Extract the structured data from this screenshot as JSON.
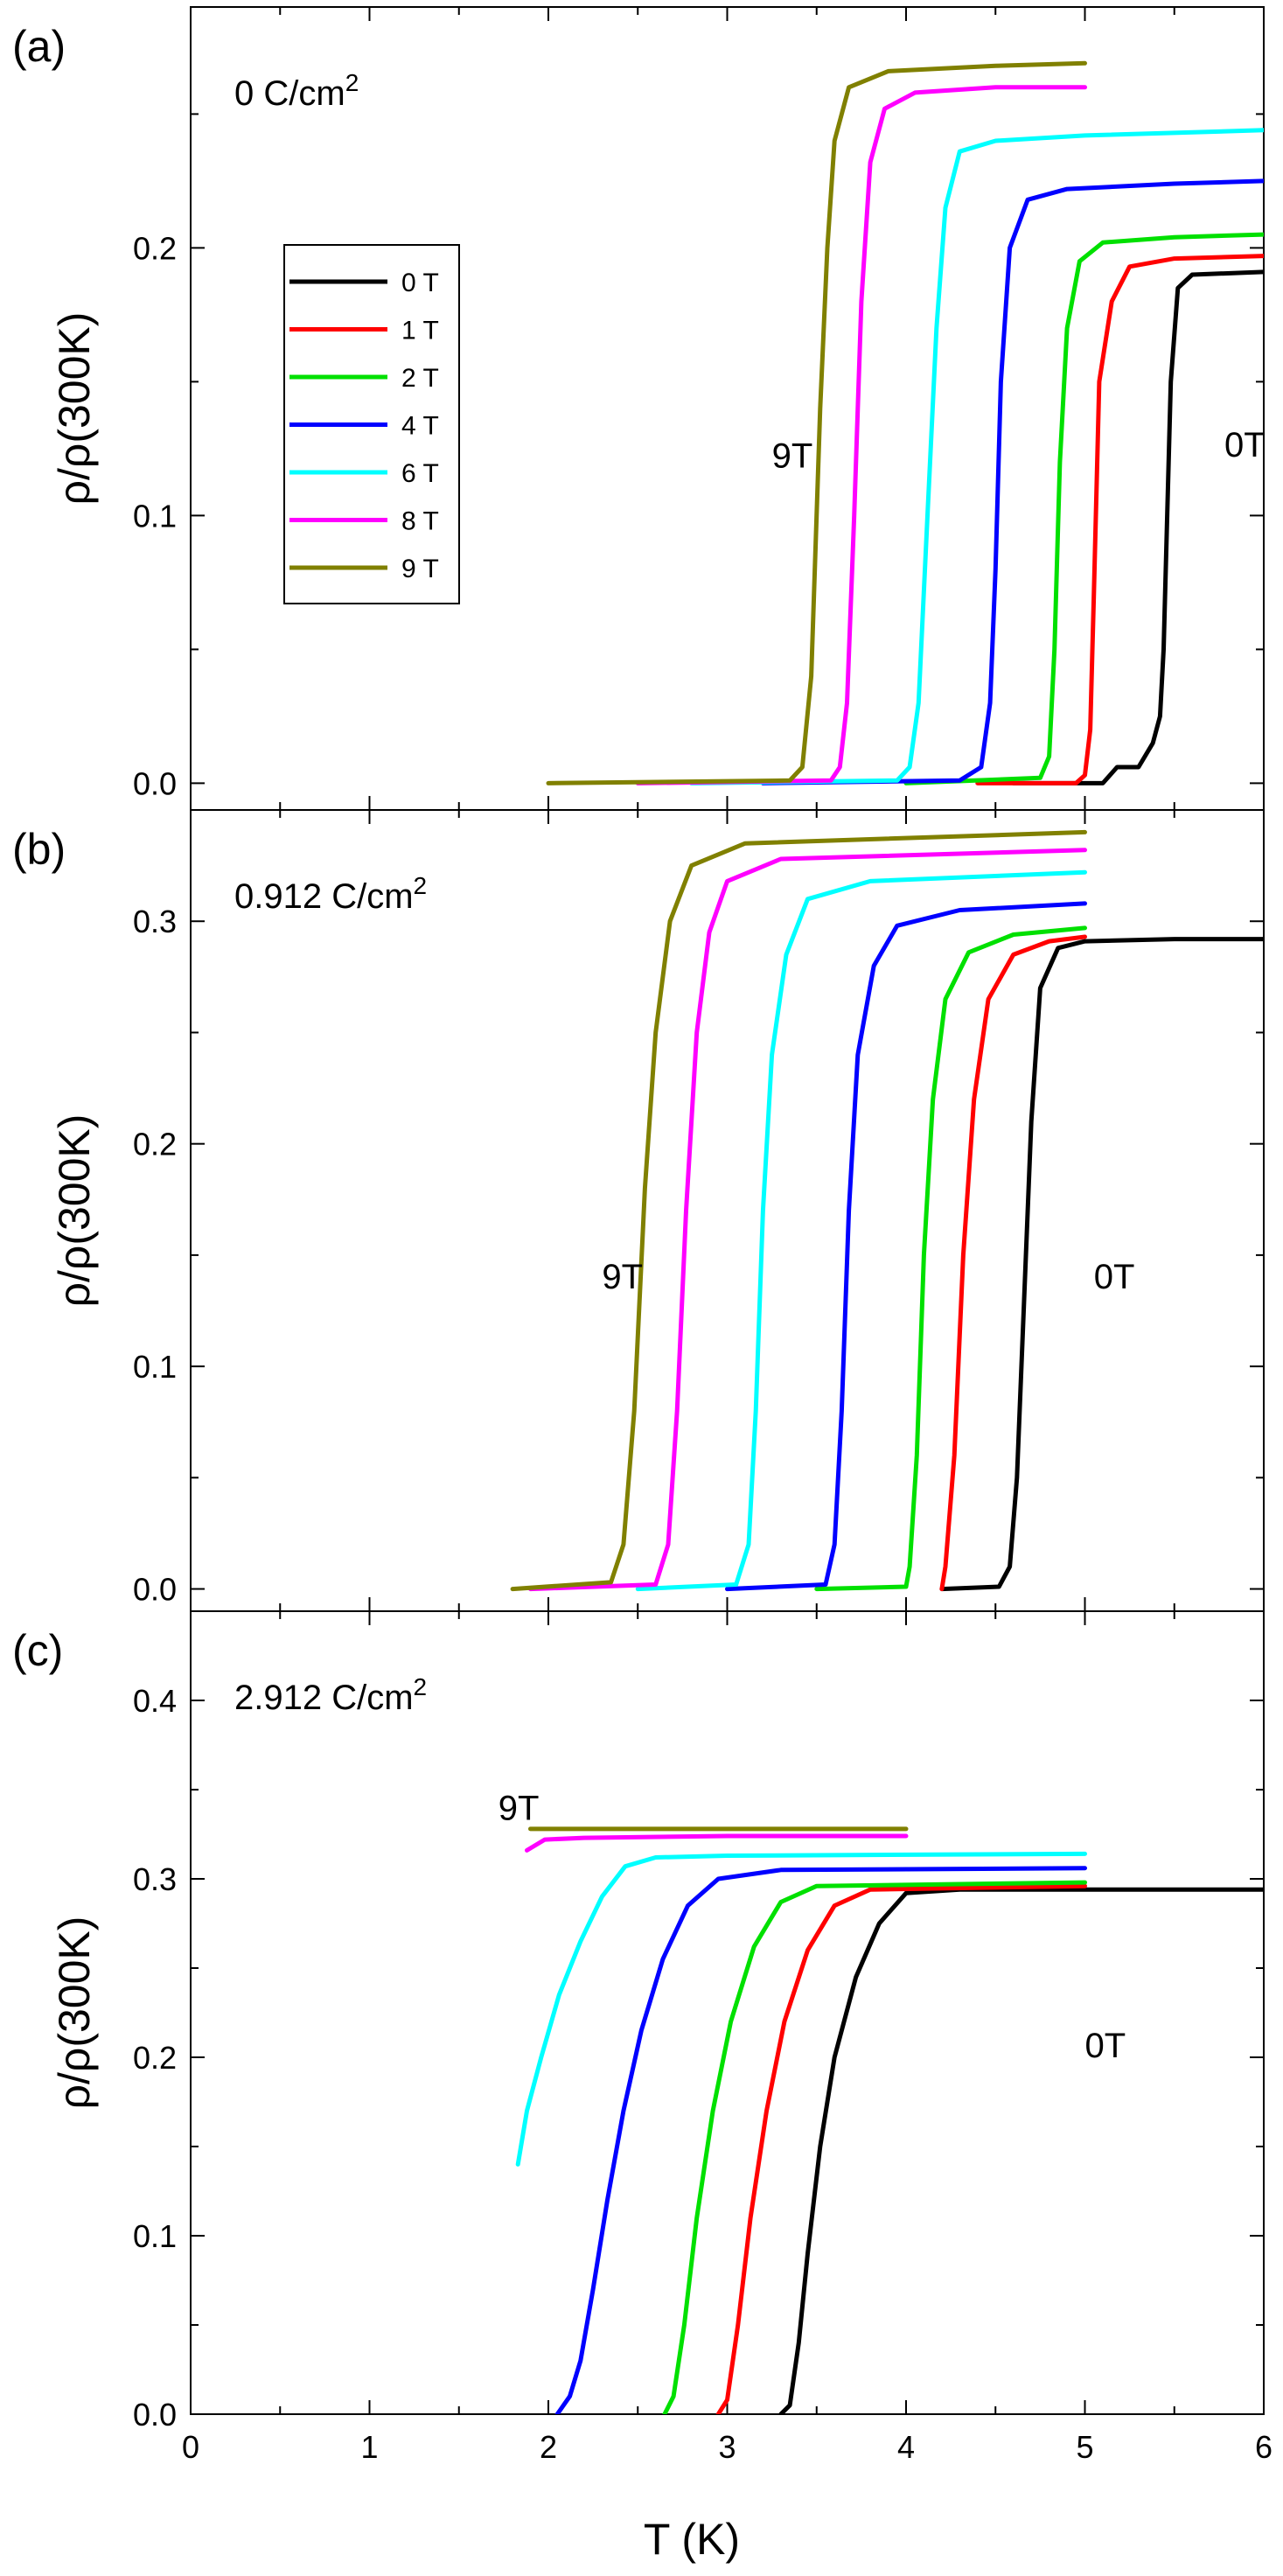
{
  "figure": {
    "xlabel": "T (K)",
    "ylabel": "ρ/ρ(300K)",
    "legend": {
      "placement": "upper-left of panel (a)",
      "entries": [
        "0 T",
        "1 T",
        "2 T",
        "4 T",
        "6 T",
        "8 T",
        "9 T"
      ]
    }
  },
  "colors": {
    "0T": "#000000",
    "1T": "#ff0000",
    "2T": "#00e000",
    "4T": "#0000ff",
    "6T": "#00ffff",
    "8T": "#ff00ff",
    "9T": "#808000"
  },
  "chart_data": [
    {
      "type": "line",
      "panel_label": "(a)",
      "title": "0 C/cm²",
      "xlabel": "T (K)",
      "ylabel": "ρ/ρ(300K)",
      "xlim": [
        0,
        6
      ],
      "ylim": [
        -0.01,
        0.29
      ],
      "yticks": [
        "0.0",
        "0.1",
        "0.2"
      ],
      "ytick_values": [
        0,
        0.1,
        0.2
      ],
      "annotations": [
        {
          "text": "9T",
          "x": 3.25,
          "y": 0.118
        },
        {
          "text": "0T",
          "x": 5.78,
          "y": 0.122
        }
      ],
      "series": [
        {
          "name": "0 T",
          "key": "0T",
          "points": [
            [
              4.6,
              0
            ],
            [
              5.1,
              0
            ],
            [
              5.18,
              0.006
            ],
            [
              5.3,
              0.006
            ],
            [
              5.38,
              0.015
            ],
            [
              5.42,
              0.025
            ],
            [
              5.44,
              0.05
            ],
            [
              5.46,
              0.1
            ],
            [
              5.48,
              0.15
            ],
            [
              5.52,
              0.185
            ],
            [
              5.6,
              0.19
            ],
            [
              6.0,
              0.191
            ]
          ]
        },
        {
          "name": "1 T",
          "key": "1T",
          "points": [
            [
              4.4,
              0
            ],
            [
              4.95,
              0
            ],
            [
              5.0,
              0.003
            ],
            [
              5.03,
              0.02
            ],
            [
              5.05,
              0.07
            ],
            [
              5.08,
              0.15
            ],
            [
              5.15,
              0.18
            ],
            [
              5.25,
              0.193
            ],
            [
              5.5,
              0.196
            ],
            [
              6.0,
              0.197
            ]
          ]
        },
        {
          "name": "2 T",
          "key": "2T",
          "points": [
            [
              4.0,
              0
            ],
            [
              4.75,
              0.002
            ],
            [
              4.8,
              0.01
            ],
            [
              4.83,
              0.05
            ],
            [
              4.86,
              0.12
            ],
            [
              4.9,
              0.17
            ],
            [
              4.97,
              0.195
            ],
            [
              5.1,
              0.202
            ],
            [
              5.5,
              0.204
            ],
            [
              6.0,
              0.205
            ]
          ]
        },
        {
          "name": "4 T",
          "key": "4T",
          "points": [
            [
              3.2,
              0
            ],
            [
              4.3,
              0.001
            ],
            [
              4.42,
              0.006
            ],
            [
              4.47,
              0.03
            ],
            [
              4.5,
              0.08
            ],
            [
              4.53,
              0.15
            ],
            [
              4.58,
              0.2
            ],
            [
              4.68,
              0.218
            ],
            [
              4.9,
              0.222
            ],
            [
              5.5,
              0.224
            ],
            [
              6.0,
              0.225
            ]
          ]
        },
        {
          "name": "6 T",
          "key": "6T",
          "points": [
            [
              2.8,
              0
            ],
            [
              3.95,
              0.001
            ],
            [
              4.02,
              0.006
            ],
            [
              4.07,
              0.03
            ],
            [
              4.12,
              0.1
            ],
            [
              4.17,
              0.17
            ],
            [
              4.22,
              0.215
            ],
            [
              4.3,
              0.236
            ],
            [
              4.5,
              0.24
            ],
            [
              5.0,
              0.242
            ],
            [
              6.0,
              0.244
            ]
          ]
        },
        {
          "name": "8 T",
          "key": "8T",
          "points": [
            [
              2.5,
              0
            ],
            [
              3.58,
              0.001
            ],
            [
              3.63,
              0.006
            ],
            [
              3.67,
              0.03
            ],
            [
              3.71,
              0.1
            ],
            [
              3.75,
              0.18
            ],
            [
              3.8,
              0.232
            ],
            [
              3.88,
              0.252
            ],
            [
              4.05,
              0.258
            ],
            [
              4.5,
              0.26
            ],
            [
              5.0,
              0.26
            ]
          ]
        },
        {
          "name": "9 T",
          "key": "9T",
          "points": [
            [
              2.0,
              0
            ],
            [
              3.35,
              0.001
            ],
            [
              3.42,
              0.006
            ],
            [
              3.47,
              0.04
            ],
            [
              3.52,
              0.14
            ],
            [
              3.56,
              0.2
            ],
            [
              3.6,
              0.24
            ],
            [
              3.68,
              0.26
            ],
            [
              3.9,
              0.266
            ],
            [
              4.5,
              0.268
            ],
            [
              5.0,
              0.269
            ]
          ]
        }
      ]
    },
    {
      "type": "line",
      "panel_label": "(b)",
      "title": "0.912 C/cm²",
      "xlabel": "T (K)",
      "ylabel": "ρ/ρ(300K)",
      "xlim": [
        0,
        6
      ],
      "ylim": [
        -0.01,
        0.35
      ],
      "yticks": [
        "0.0",
        "0.1",
        "0.2",
        "0.3"
      ],
      "ytick_values": [
        0,
        0.1,
        0.2,
        0.3
      ],
      "annotations": [
        {
          "text": "9T",
          "x": 2.3,
          "y": 0.135
        },
        {
          "text": "0T",
          "x": 5.05,
          "y": 0.135
        }
      ],
      "series": [
        {
          "name": "0 T",
          "key": "0T",
          "points": [
            [
              4.2,
              0
            ],
            [
              4.52,
              0.001
            ],
            [
              4.58,
              0.01
            ],
            [
              4.62,
              0.05
            ],
            [
              4.66,
              0.13
            ],
            [
              4.7,
              0.21
            ],
            [
              4.75,
              0.27
            ],
            [
              4.85,
              0.288
            ],
            [
              5.0,
              0.291
            ],
            [
              5.5,
              0.292
            ],
            [
              6.0,
              0.292
            ]
          ]
        },
        {
          "name": "1 T",
          "key": "1T",
          "points": [
            [
              4.2,
              0
            ],
            [
              4.22,
              0.01
            ],
            [
              4.27,
              0.06
            ],
            [
              4.32,
              0.15
            ],
            [
              4.38,
              0.22
            ],
            [
              4.46,
              0.265
            ],
            [
              4.6,
              0.285
            ],
            [
              4.8,
              0.291
            ],
            [
              5.0,
              0.293
            ]
          ]
        },
        {
          "name": "2 T",
          "key": "2T",
          "points": [
            [
              3.5,
              0
            ],
            [
              4.0,
              0.001
            ],
            [
              4.02,
              0.01
            ],
            [
              4.06,
              0.06
            ],
            [
              4.1,
              0.15
            ],
            [
              4.15,
              0.22
            ],
            [
              4.22,
              0.265
            ],
            [
              4.35,
              0.286
            ],
            [
              4.6,
              0.294
            ],
            [
              5.0,
              0.297
            ]
          ]
        },
        {
          "name": "4 T",
          "key": "4T",
          "points": [
            [
              3.0,
              0
            ],
            [
              3.55,
              0.002
            ],
            [
              3.6,
              0.02
            ],
            [
              3.64,
              0.08
            ],
            [
              3.68,
              0.17
            ],
            [
              3.73,
              0.24
            ],
            [
              3.82,
              0.28
            ],
            [
              3.95,
              0.298
            ],
            [
              4.3,
              0.305
            ],
            [
              5.0,
              0.308
            ]
          ]
        },
        {
          "name": "6 T",
          "key": "6T",
          "points": [
            [
              2.5,
              0
            ],
            [
              3.05,
              0.002
            ],
            [
              3.12,
              0.02
            ],
            [
              3.16,
              0.08
            ],
            [
              3.2,
              0.17
            ],
            [
              3.25,
              0.24
            ],
            [
              3.33,
              0.285
            ],
            [
              3.45,
              0.31
            ],
            [
              3.8,
              0.318
            ],
            [
              5.0,
              0.322
            ]
          ]
        },
        {
          "name": "8 T",
          "key": "8T",
          "points": [
            [
              1.9,
              0
            ],
            [
              2.6,
              0.002
            ],
            [
              2.67,
              0.02
            ],
            [
              2.72,
              0.08
            ],
            [
              2.77,
              0.17
            ],
            [
              2.83,
              0.25
            ],
            [
              2.9,
              0.295
            ],
            [
              3.0,
              0.318
            ],
            [
              3.3,
              0.328
            ],
            [
              5.0,
              0.332
            ]
          ]
        },
        {
          "name": "9 T",
          "key": "9T",
          "points": [
            [
              1.8,
              0
            ],
            [
              2.35,
              0.003
            ],
            [
              2.42,
              0.02
            ],
            [
              2.48,
              0.08
            ],
            [
              2.54,
              0.18
            ],
            [
              2.6,
              0.25
            ],
            [
              2.68,
              0.3
            ],
            [
              2.8,
              0.325
            ],
            [
              3.1,
              0.335
            ],
            [
              5.0,
              0.34
            ]
          ]
        }
      ]
    },
    {
      "type": "line",
      "panel_label": "(c)",
      "title": "2.912 C/cm²",
      "xlabel": "T (K)",
      "ylabel": "ρ/ρ(300K)",
      "xlim": [
        0,
        6
      ],
      "ylim": [
        0,
        0.45
      ],
      "xticks": [
        "0",
        "1",
        "2",
        "3",
        "4",
        "5",
        "6"
      ],
      "xtick_values": [
        0,
        1,
        2,
        3,
        4,
        5,
        6
      ],
      "yticks": [
        "0.0",
        "0.1",
        "0.2",
        "0.3",
        "0.4"
      ],
      "ytick_values": [
        0,
        0.1,
        0.2,
        0.3,
        0.4
      ],
      "annotations": [
        {
          "text": "9T",
          "x": 1.72,
          "y": 0.333
        },
        {
          "text": "0T",
          "x": 5.0,
          "y": 0.2
        }
      ],
      "series": [
        {
          "name": "0 T",
          "key": "0T",
          "points": [
            [
              3.3,
              0
            ],
            [
              3.35,
              0.005
            ],
            [
              3.4,
              0.04
            ],
            [
              3.45,
              0.09
            ],
            [
              3.52,
              0.15
            ],
            [
              3.6,
              0.2
            ],
            [
              3.72,
              0.245
            ],
            [
              3.85,
              0.275
            ],
            [
              4.0,
              0.292
            ],
            [
              4.3,
              0.294
            ],
            [
              6.0,
              0.294
            ]
          ]
        },
        {
          "name": "1 T",
          "key": "1T",
          "points": [
            [
              2.95,
              0
            ],
            [
              3.0,
              0.008
            ],
            [
              3.06,
              0.05
            ],
            [
              3.13,
              0.11
            ],
            [
              3.22,
              0.17
            ],
            [
              3.32,
              0.22
            ],
            [
              3.45,
              0.26
            ],
            [
              3.6,
              0.285
            ],
            [
              3.8,
              0.294
            ],
            [
              5.0,
              0.296
            ]
          ]
        },
        {
          "name": "2 T",
          "key": "2T",
          "points": [
            [
              2.65,
              0
            ],
            [
              2.7,
              0.01
            ],
            [
              2.76,
              0.05
            ],
            [
              2.83,
              0.11
            ],
            [
              2.92,
              0.17
            ],
            [
              3.02,
              0.22
            ],
            [
              3.15,
              0.262
            ],
            [
              3.3,
              0.287
            ],
            [
              3.5,
              0.296
            ],
            [
              5.0,
              0.298
            ]
          ]
        },
        {
          "name": "4 T",
          "key": "4T",
          "points": [
            [
              2.05,
              0
            ],
            [
              2.12,
              0.01
            ],
            [
              2.18,
              0.03
            ],
            [
              2.25,
              0.07
            ],
            [
              2.33,
              0.12
            ],
            [
              2.42,
              0.17
            ],
            [
              2.52,
              0.215
            ],
            [
              2.64,
              0.255
            ],
            [
              2.78,
              0.285
            ],
            [
              2.95,
              0.3
            ],
            [
              3.3,
              0.305
            ],
            [
              5.0,
              0.306
            ]
          ]
        },
        {
          "name": "6 T",
          "key": "6T",
          "points": [
            [
              1.83,
              0.14
            ],
            [
              1.88,
              0.17
            ],
            [
              1.96,
              0.2
            ],
            [
              2.06,
              0.235
            ],
            [
              2.18,
              0.265
            ],
            [
              2.3,
              0.29
            ],
            [
              2.43,
              0.307
            ],
            [
              2.6,
              0.312
            ],
            [
              3.0,
              0.313
            ],
            [
              5.0,
              0.314
            ]
          ]
        },
        {
          "name": "8 T",
          "key": "8T",
          "points": [
            [
              1.88,
              0.316
            ],
            [
              1.98,
              0.322
            ],
            [
              2.2,
              0.323
            ],
            [
              3.0,
              0.324
            ],
            [
              4.0,
              0.324
            ]
          ]
        },
        {
          "name": "9 T",
          "key": "9T",
          "points": [
            [
              1.9,
              0.328
            ],
            [
              2.5,
              0.328
            ],
            [
              3.2,
              0.328
            ],
            [
              4.0,
              0.328
            ]
          ]
        }
      ]
    }
  ]
}
